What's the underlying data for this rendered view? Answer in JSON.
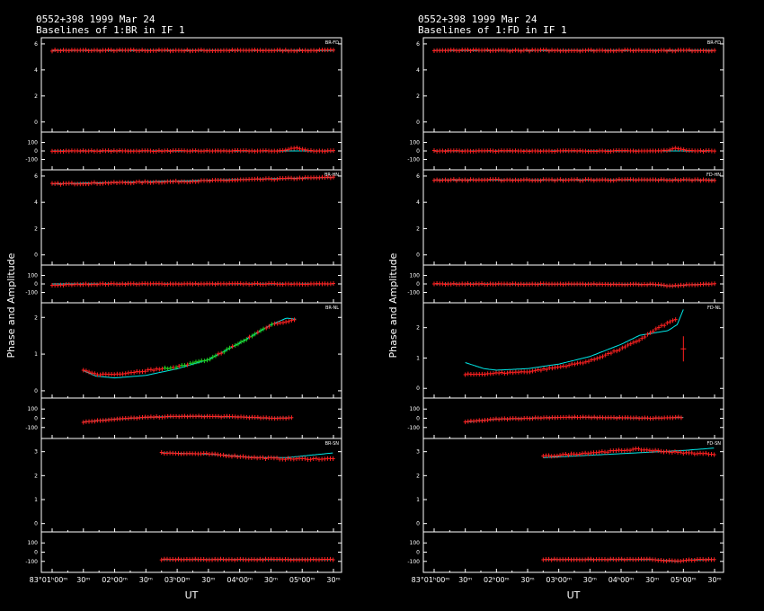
{
  "chart_data": [
    {
      "type": "scatter",
      "title": "0552+398  1999 Mar 24",
      "subtitle": "Baselines of 1:BR in IF 1",
      "ylabel": "Phase and Amplitude",
      "xlabel": "UT",
      "x_range_hours": [
        1.0,
        5.5
      ],
      "x_ticks": [
        "83°01ʰ00ᵐ",
        "30ᵐ",
        "02ʰ00ᵐ",
        "30ᵐ",
        "03ʰ00ᵐ",
        "30ᵐ",
        "04ʰ00ᵐ",
        "30ᵐ",
        "05ʰ00ᵐ",
        "30ᵐ"
      ],
      "panels": [
        {
          "baseline": "BR-FD",
          "amp_ylim": [
            -0.5,
            6.2
          ],
          "amp_ticks": [
            "0",
            "2",
            "4",
            "6"
          ],
          "phase_ylim": [
            -190,
            190
          ],
          "phase_ticks": [
            "100",
            "0",
            "-100"
          ],
          "amp_x": [
            1.0,
            5.5
          ],
          "amp_y": [
            5.5,
            5.5
          ],
          "phase_x": [
            1.0,
            5.5
          ],
          "phase_y": [
            0,
            0
          ],
          "phase_bump": {
            "center": 4.9,
            "height": 35,
            "width": 0.15
          },
          "amp_model_x": [
            1.0,
            5.5
          ],
          "amp_model_y": [
            5.5,
            5.5
          ],
          "phase_model_x": [
            1.0,
            5.5
          ],
          "phase_model_y": [
            0,
            0
          ]
        },
        {
          "baseline": "BR-HN",
          "amp_ylim": [
            -0.5,
            6.2
          ],
          "amp_ticks": [
            "0",
            "2",
            "4",
            "6"
          ],
          "phase_ylim": [
            -190,
            190
          ],
          "phase_ticks": [
            "100",
            "0",
            "-100"
          ],
          "amp_x": [
            1.0,
            3.25,
            5.5
          ],
          "amp_y": [
            5.4,
            5.6,
            5.9
          ],
          "phase_x": [
            1.0,
            1.5,
            2.0,
            5.5
          ],
          "phase_y": [
            -15,
            -5,
            0,
            0
          ],
          "amp_model_x": [
            1.0,
            5.5
          ],
          "amp_model_y": [
            5.4,
            5.9
          ],
          "phase_model_x": [
            1.0,
            5.5
          ],
          "phase_model_y": [
            0,
            0
          ]
        },
        {
          "baseline": "BR-NL",
          "amp_ylim": [
            -0.1,
            2.3
          ],
          "amp_ticks": [
            "0",
            "1",
            "2"
          ],
          "phase_ylim": [
            -190,
            190
          ],
          "phase_ticks": [
            "100",
            "0",
            "-100"
          ],
          "amp_x": [
            1.5,
            1.7,
            2.0,
            2.5,
            3.0,
            3.5,
            4.0,
            4.5,
            4.9
          ],
          "amp_y": [
            0.55,
            0.45,
            0.45,
            0.55,
            0.65,
            0.85,
            1.3,
            1.8,
            1.95
          ],
          "phase_x": [
            1.5,
            2.0,
            2.5,
            3.0,
            3.5,
            4.0,
            4.5,
            4.85
          ],
          "phase_y": [
            -40,
            -10,
            10,
            20,
            20,
            15,
            0,
            5
          ],
          "amp_model_x": [
            1.5,
            1.7,
            2.0,
            2.5,
            3.0,
            3.5,
            4.0,
            4.5,
            4.75,
            4.9
          ],
          "amp_model_y": [
            0.55,
            0.4,
            0.35,
            0.42,
            0.6,
            0.85,
            1.3,
            1.8,
            1.98,
            1.95
          ],
          "phase_model_x": [
            1.5,
            2.0,
            2.5,
            3.0,
            3.5,
            4.0,
            4.5,
            4.85
          ],
          "phase_model_y": [
            -40,
            -10,
            10,
            20,
            20,
            15,
            0,
            5
          ]
        },
        {
          "baseline": "BR-SN",
          "amp_ylim": [
            -0.2,
            3.4
          ],
          "amp_ticks": [
            "0",
            "1",
            "2",
            "3"
          ],
          "phase_ylim": [
            -190,
            190
          ],
          "phase_ticks": [
            "100",
            "0",
            "-100"
          ],
          "amp_x": [
            2.75,
            3.5,
            4.25,
            4.75,
            5.5
          ],
          "amp_y": [
            2.95,
            2.9,
            2.75,
            2.7,
            2.7
          ],
          "phase_x": [
            2.75,
            5.5
          ],
          "phase_y": [
            -80,
            -80
          ],
          "amp_model_x": [
            2.75,
            3.5,
            4.25,
            4.75,
            5.5
          ],
          "amp_model_y": [
            2.95,
            2.9,
            2.75,
            2.75,
            2.95
          ],
          "phase_model_x": [
            2.75,
            5.5
          ],
          "phase_model_y": [
            -80,
            -80
          ]
        }
      ]
    },
    {
      "type": "scatter",
      "title": "0552+398  1999 Mar 24",
      "subtitle": "Baselines of 1:FD in IF 1",
      "ylabel": "Phase and Amplitude",
      "xlabel": "UT",
      "x_range_hours": [
        1.0,
        5.5
      ],
      "x_ticks": [
        "83°01ʰ00ᵐ",
        "30ᵐ",
        "02ʰ00ᵐ",
        "30ᵐ",
        "03ʰ00ᵐ",
        "30ᵐ",
        "04ʰ00ᵐ",
        "30ᵐ",
        "05ʰ00ᵐ",
        "30ᵐ"
      ],
      "panels": [
        {
          "baseline": "BR-FD",
          "amp_ylim": [
            -0.5,
            6.2
          ],
          "amp_ticks": [
            "0",
            "2",
            "4",
            "6"
          ],
          "phase_ylim": [
            -190,
            190
          ],
          "phase_ticks": [
            "100",
            "0",
            "-100"
          ],
          "amp_x": [
            1.0,
            5.5
          ],
          "amp_y": [
            5.5,
            5.5
          ],
          "phase_x": [
            1.0,
            5.5
          ],
          "phase_y": [
            0,
            0
          ],
          "phase_bump": {
            "center": 4.9,
            "height": 30,
            "width": 0.15
          },
          "amp_model_x": [
            1.0,
            5.5
          ],
          "amp_model_y": [
            5.5,
            5.5
          ],
          "phase_model_x": [
            1.0,
            5.5
          ],
          "phase_model_y": [
            0,
            0
          ]
        },
        {
          "baseline": "FD-HN",
          "amp_ylim": [
            -0.5,
            6.2
          ],
          "amp_ticks": [
            "0",
            "2",
            "4",
            "6"
          ],
          "phase_ylim": [
            -190,
            190
          ],
          "phase_ticks": [
            "100",
            "0",
            "-100"
          ],
          "amp_x": [
            1.0,
            5.5
          ],
          "amp_y": [
            5.7,
            5.7
          ],
          "phase_x": [
            1.0,
            4.5,
            4.8,
            5.1,
            5.5
          ],
          "phase_y": [
            0,
            -5,
            -25,
            -10,
            0
          ],
          "amp_model_x": [
            1.0,
            5.5
          ],
          "amp_model_y": [
            5.7,
            5.7
          ],
          "phase_model_x": [
            1.0,
            4.5,
            4.8,
            5.1,
            5.5
          ],
          "phase_model_y": [
            0,
            -5,
            -25,
            -10,
            0
          ]
        },
        {
          "baseline": "FD-NL",
          "amp_ylim": [
            -0.2,
            2.7
          ],
          "amp_ticks": [
            "0",
            "1",
            "2"
          ],
          "phase_ylim": [
            -190,
            190
          ],
          "phase_ticks": [
            "100",
            "0",
            "-100"
          ],
          "amp_x": [
            1.5,
            2.0,
            2.5,
            3.0,
            3.5,
            4.0,
            4.3,
            4.6,
            4.9
          ],
          "amp_y": [
            0.45,
            0.5,
            0.55,
            0.7,
            0.9,
            1.3,
            1.6,
            2.0,
            2.3
          ],
          "phase_x": [
            1.5,
            2.0,
            2.5,
            3.0,
            3.5,
            4.0,
            4.5,
            5.0
          ],
          "phase_y": [
            -40,
            -10,
            0,
            10,
            10,
            5,
            0,
            10
          ],
          "amp_model_x": [
            1.5,
            1.8,
            2.0,
            2.5,
            3.0,
            3.5,
            4.0,
            4.3,
            4.6,
            4.75,
            4.9,
            5.0
          ],
          "amp_model_y": [
            0.85,
            0.65,
            0.6,
            0.65,
            0.8,
            1.05,
            1.45,
            1.75,
            1.85,
            1.9,
            2.1,
            2.6
          ],
          "phase_model_x": [
            1.5,
            2.0,
            2.5,
            3.0,
            3.5,
            4.0,
            4.5,
            5.0
          ],
          "phase_model_y": [
            -40,
            -10,
            0,
            10,
            10,
            5,
            0,
            10
          ],
          "outlier": {
            "x": 5.0,
            "y": 1.3
          }
        },
        {
          "baseline": "FD-SN",
          "amp_ylim": [
            -0.2,
            3.4
          ],
          "amp_ticks": [
            "0",
            "1",
            "2",
            "3"
          ],
          "phase_ylim": [
            -190,
            190
          ],
          "phase_ticks": [
            "100",
            "0",
            "-100"
          ],
          "amp_x": [
            2.75,
            3.5,
            4.25,
            5.0,
            5.5
          ],
          "amp_y": [
            2.8,
            2.95,
            3.1,
            2.95,
            2.9
          ],
          "phase_x": [
            2.75,
            4.5,
            4.9,
            5.1,
            5.5
          ],
          "phase_y": [
            -80,
            -80,
            -100,
            -85,
            -80
          ],
          "amp_model_x": [
            2.75,
            3.5,
            4.25,
            5.0,
            5.5
          ],
          "amp_model_y": [
            2.75,
            2.85,
            2.95,
            3.05,
            3.15
          ],
          "phase_model_x": [
            2.75,
            4.5,
            4.9,
            5.1,
            5.5
          ],
          "phase_model_y": [
            -80,
            -80,
            -100,
            -85,
            -80
          ]
        }
      ]
    }
  ],
  "colors": {
    "data": "#ff2020",
    "model": "#00e8e8",
    "frame": "#ffffff",
    "alt_data": "#20d020"
  }
}
